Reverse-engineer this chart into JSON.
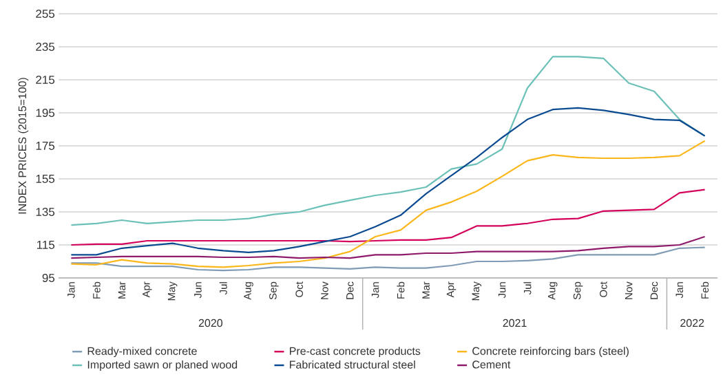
{
  "chart_data": {
    "type": "line",
    "ylabel": "INDEX PRICES (2015=100)",
    "categories": [
      "Jan",
      "Feb",
      "Mar",
      "Apr",
      "May",
      "Jun",
      "Jul",
      "Aug",
      "Sep",
      "Oct",
      "Nov",
      "Dec",
      "Jan",
      "Feb",
      "Mar",
      "Apr",
      "May",
      "Jun",
      "Jul",
      "Aug",
      "Sep",
      "Oct",
      "Nov",
      "Dec",
      "Jan",
      "Feb"
    ],
    "annotations": [
      "2020",
      "2021",
      "2022"
    ],
    "ylim": [
      95,
      255
    ],
    "yticks": [
      95,
      115,
      135,
      155,
      175,
      195,
      215,
      235,
      255
    ],
    "grid": "y",
    "legend": "bottom",
    "marker": "none",
    "line_style": "solid",
    "series": [
      {
        "name": "Ready-mixed concrete",
        "color": "#7f9bb5",
        "values": [
          104,
          104,
          102,
          102,
          102,
          100,
          99.5,
          100,
          101.5,
          101.5,
          101,
          100.5,
          101.5,
          101,
          101,
          102.5,
          105,
          105,
          105.5,
          106.5,
          109,
          109,
          109,
          109,
          113,
          113.5
        ]
      },
      {
        "name": "Pre-cast concrete products",
        "color": "#d4005a",
        "values": [
          115,
          115.5,
          115.5,
          117.5,
          117.5,
          117.5,
          117.5,
          117.5,
          117.5,
          117.5,
          117.5,
          117,
          117.5,
          118,
          118,
          119.5,
          126.5,
          126.5,
          128,
          130.5,
          131,
          135.5,
          136,
          136.5,
          146.5,
          148.5
        ]
      },
      {
        "name": "Concrete reinforcing bars (steel)",
        "color": "#fbb61a",
        "values": [
          103.5,
          103,
          106,
          104,
          103.5,
          102,
          101.5,
          102.5,
          104,
          105,
          107,
          111,
          120,
          124,
          136,
          141,
          147.5,
          156.5,
          166,
          169.5,
          168,
          167.5,
          167.5,
          168,
          169,
          178
        ]
      },
      {
        "name": "Imported sawn or planed wood",
        "color": "#6bc0b8",
        "values": [
          127,
          128,
          130,
          128,
          129,
          130,
          130,
          131,
          133.5,
          135,
          139,
          142,
          145,
          147,
          150,
          161,
          164,
          173,
          210,
          229,
          229,
          228,
          213,
          208,
          191,
          181
        ]
      },
      {
        "name": "Fabricated structural steel",
        "color": "#0a4a91",
        "values": [
          109,
          109,
          113,
          114.5,
          116,
          113,
          111.5,
          110.5,
          111.5,
          114,
          117,
          120,
          126,
          133,
          146,
          157,
          168,
          180,
          191,
          197,
          198,
          196.5,
          194,
          191,
          190.5,
          181
        ]
      },
      {
        "name": "Cement",
        "color": "#8e1a6a",
        "values": [
          107,
          107.5,
          108,
          108,
          108,
          108,
          107.5,
          107.5,
          108,
          107,
          107.5,
          107,
          109,
          109,
          110,
          110,
          111,
          111,
          111,
          111,
          111.5,
          113,
          114,
          114,
          115,
          120
        ]
      }
    ]
  }
}
